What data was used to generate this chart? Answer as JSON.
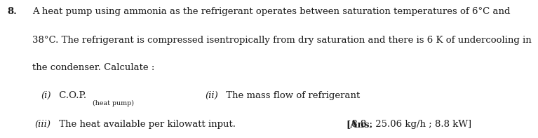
{
  "question_number": "8.",
  "main_text_line1": "A heat pump using ammonia as the refrigerant operates between saturation temperatures of 6°C and",
  "main_text_line2": "38°C. The refrigerant is compressed isentropically from dry saturation and there is 6 K of undercooling in",
  "main_text_line3": "the condenser. Calculate :",
  "item_i_label": "(i)",
  "item_i_main": " C.O.P.",
  "item_i_sub": "(heat pump)",
  "item_ii_label": "(ii)",
  "item_ii_text": " The mass flow of refrigerant",
  "item_iii_label": "(iii)",
  "item_iii_text": " The heat available per kilowatt input.",
  "ans_bracket": "[",
  "ans_bold": "Ans.",
  "ans_rest": " 8.8 ; 25.06 kg/h ; 8.8 kW]",
  "bg_color": "#ffffff",
  "text_color": "#1a1a1a",
  "font_size_main": 9.5,
  "font_size_sub": 6.8
}
